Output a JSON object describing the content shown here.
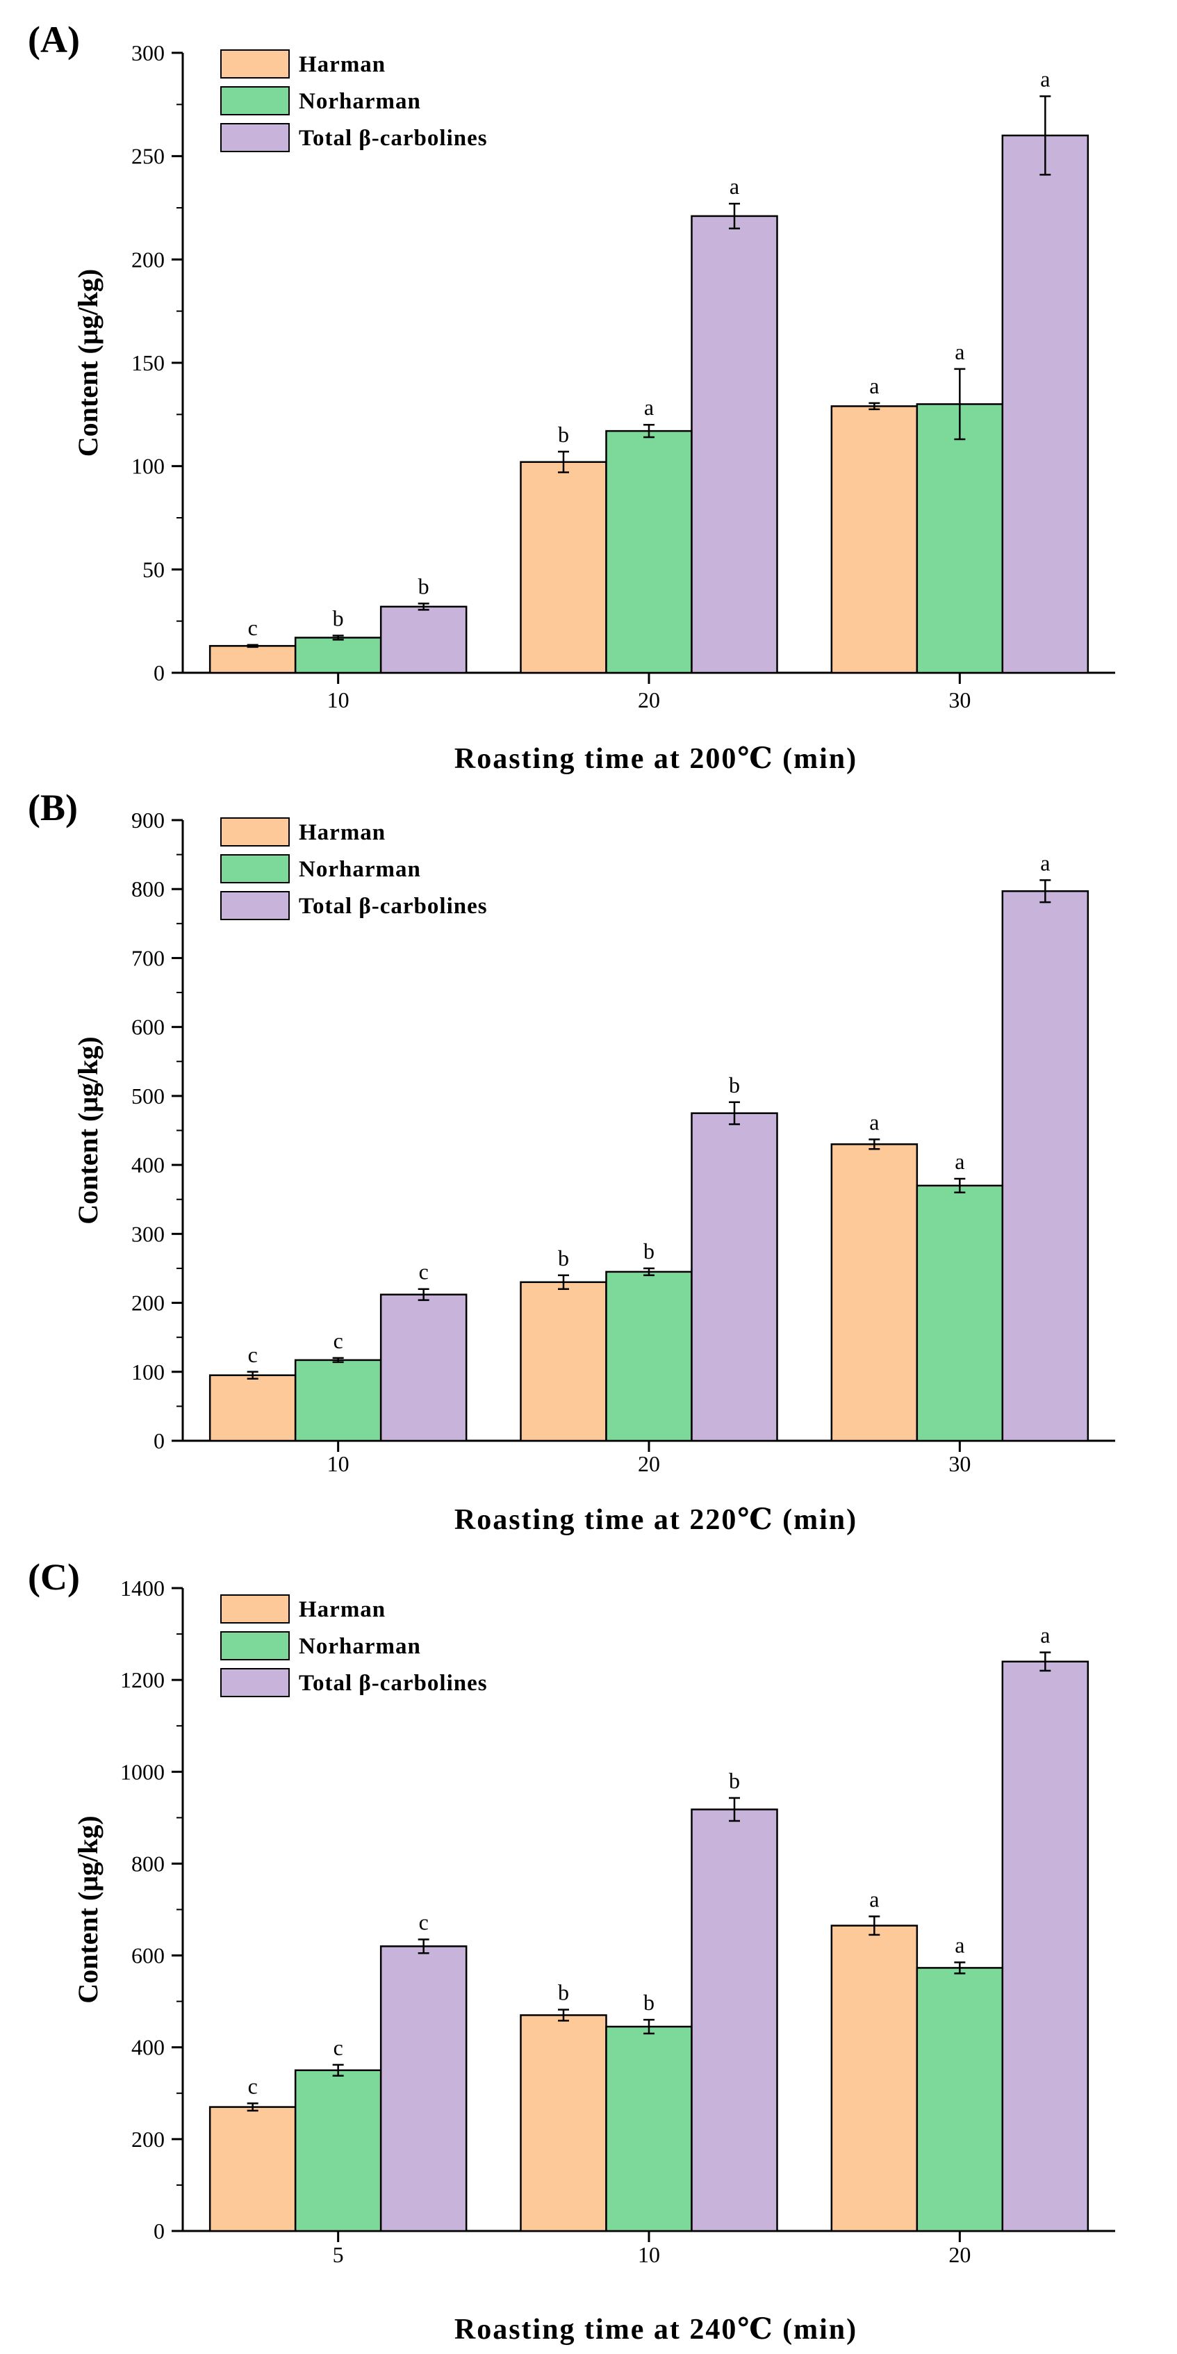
{
  "colors": {
    "harman": "#FDC998",
    "norharman": "#7DD99A",
    "total": "#C8B3DA",
    "axis": "#000000",
    "background": "#ffffff"
  },
  "chart_data": [
    {
      "panel_label": "(A)",
      "type": "bar",
      "title": "",
      "xlabel": "Roasting time at 200℃ (min)",
      "ylabel": "Content (μg/kg)",
      "ylim": [
        0,
        300
      ],
      "yticks": [
        0,
        50,
        100,
        150,
        200,
        250,
        300
      ],
      "categories": [
        "10",
        "20",
        "30"
      ],
      "legend": [
        "Harman",
        "Norharman",
        "Total β-carbolines"
      ],
      "legend_position": "top-left",
      "series": [
        {
          "name": "Harman",
          "values": [
            13,
            102,
            129
          ],
          "errors": [
            0.5,
            5,
            1.5
          ],
          "letters": [
            "c",
            "b",
            "a"
          ]
        },
        {
          "name": "Norharman",
          "values": [
            17,
            117,
            130
          ],
          "errors": [
            1,
            3,
            17
          ],
          "letters": [
            "b",
            "a",
            "a"
          ]
        },
        {
          "name": "Total β-carbolines",
          "values": [
            32,
            221,
            260
          ],
          "errors": [
            1.5,
            6,
            19
          ],
          "letters": [
            "b",
            "a",
            "a"
          ]
        }
      ]
    },
    {
      "panel_label": "(B)",
      "type": "bar",
      "title": "",
      "xlabel": "Roasting time at 220℃ (min)",
      "ylabel": "Content (μg/kg)",
      "ylim": [
        0,
        900
      ],
      "yticks": [
        0,
        100,
        200,
        300,
        400,
        500,
        600,
        700,
        800,
        900
      ],
      "categories": [
        "10",
        "20",
        "30"
      ],
      "legend": [
        "Harman",
        "Norharman",
        "Total β-carbolines"
      ],
      "legend_position": "top-left",
      "series": [
        {
          "name": "Harman",
          "values": [
            95,
            230,
            430
          ],
          "errors": [
            5,
            10,
            7
          ],
          "letters": [
            "c",
            "b",
            "a"
          ]
        },
        {
          "name": "Norharman",
          "values": [
            117,
            245,
            370
          ],
          "errors": [
            3,
            5,
            10
          ],
          "letters": [
            "c",
            "b",
            "a"
          ]
        },
        {
          "name": "Total β-carbolines",
          "values": [
            212,
            475,
            797
          ],
          "errors": [
            8,
            16,
            16
          ],
          "letters": [
            "c",
            "b",
            "a"
          ]
        }
      ]
    },
    {
      "panel_label": "(C)",
      "type": "bar",
      "title": "",
      "xlabel": "Roasting time at 240℃ (min)",
      "ylabel": "Content (μg/kg)",
      "ylim": [
        0,
        1400
      ],
      "yticks": [
        0,
        200,
        400,
        600,
        800,
        1000,
        1200,
        1400
      ],
      "categories": [
        "5",
        "10",
        "20"
      ],
      "legend": [
        "Harman",
        "Norharman",
        "Total β-carbolines"
      ],
      "legend_position": "top-left",
      "series": [
        {
          "name": "Harman",
          "values": [
            270,
            470,
            665
          ],
          "errors": [
            8,
            12,
            20
          ],
          "letters": [
            "c",
            "b",
            "a"
          ]
        },
        {
          "name": "Norharman",
          "values": [
            350,
            445,
            573
          ],
          "errors": [
            12,
            15,
            12
          ],
          "letters": [
            "c",
            "b",
            "a"
          ]
        },
        {
          "name": "Total β-carbolines",
          "values": [
            620,
            918,
            1240
          ],
          "errors": [
            15,
            25,
            20
          ],
          "letters": [
            "c",
            "b",
            "a"
          ]
        }
      ]
    }
  ]
}
